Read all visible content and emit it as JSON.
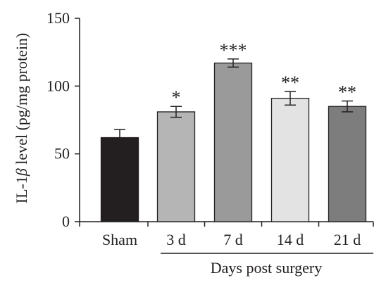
{
  "chart_data": {
    "type": "bar",
    "ylabel_prefix": "IL-1",
    "ylabel_symbol": "β",
    "ylabel_suffix": " level (pg/mg protein)",
    "xgroup_label": "Days post surgery",
    "ylim": [
      0,
      150
    ],
    "yticks": [
      "0",
      "50",
      "100",
      "150"
    ],
    "categories": [
      "Sham",
      "3 d",
      "7 d",
      "14 d",
      "21 d"
    ],
    "values": [
      62,
      81,
      117,
      91,
      85
    ],
    "errors": [
      6,
      4,
      3,
      5,
      4
    ],
    "significance": [
      "",
      "*",
      "***",
      "**",
      "**"
    ],
    "bar_colors": [
      "#231f20",
      "#b5b5b5",
      "#9a9a9a",
      "#e3e3e3",
      "#7d7d7d"
    ]
  }
}
